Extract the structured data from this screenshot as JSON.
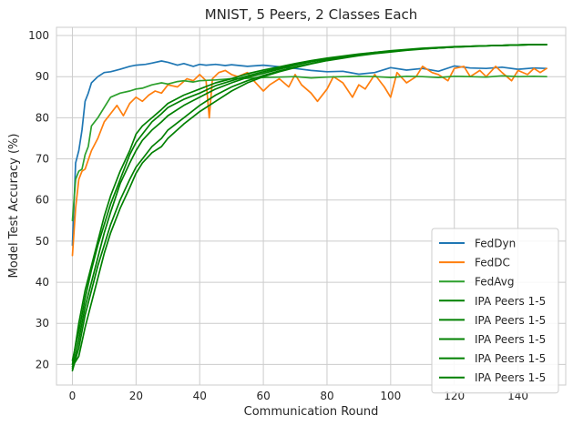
{
  "chart_data": {
    "type": "line",
    "title": "MNIST, 5 Peers, 2 Classes Each",
    "xlabel": "Communication Round",
    "ylabel": "Model Test Accuracy (%)",
    "xlim": [
      -5,
      155
    ],
    "ylim": [
      15,
      102
    ],
    "xticks": [
      0,
      20,
      40,
      60,
      80,
      100,
      120,
      140
    ],
    "yticks": [
      20,
      30,
      40,
      50,
      60,
      70,
      80,
      90,
      100
    ],
    "grid": true,
    "legend_position": "lower-right",
    "series": [
      {
        "name": "FedDyn",
        "color": "#1f77b4",
        "x": [
          0,
          1,
          2,
          3,
          4,
          5,
          6,
          8,
          10,
          12,
          15,
          18,
          20,
          23,
          25,
          28,
          30,
          33,
          35,
          38,
          40,
          42,
          45,
          48,
          50,
          55,
          60,
          65,
          70,
          75,
          80,
          85,
          90,
          95,
          100,
          105,
          110,
          115,
          120,
          125,
          130,
          135,
          140,
          145,
          149
        ],
        "y": [
          49,
          69,
          72,
          77,
          84,
          86,
          88.5,
          90,
          91,
          91.2,
          91.8,
          92.5,
          92.8,
          93,
          93.3,
          93.8,
          93.5,
          92.8,
          93.2,
          92.5,
          93,
          92.8,
          93,
          92.7,
          92.9,
          92.5,
          92.8,
          92.4,
          92,
          91.5,
          91.2,
          91.3,
          90.6,
          91,
          92.2,
          91.6,
          92,
          91.3,
          92.6,
          92.1,
          92,
          92.3,
          91.8,
          92.1,
          92
        ]
      },
      {
        "name": "FedDC",
        "color": "#ff7f0e",
        "x": [
          0,
          1,
          2,
          3,
          4,
          6,
          8,
          10,
          12,
          14,
          16,
          18,
          20,
          22,
          24,
          26,
          28,
          30,
          33,
          36,
          38,
          40,
          42,
          43,
          44,
          46,
          48,
          50,
          52,
          55,
          57,
          60,
          62,
          65,
          68,
          70,
          72,
          75,
          77,
          80,
          82,
          85,
          88,
          90,
          92,
          95,
          98,
          100,
          102,
          105,
          108,
          110,
          113,
          115,
          118,
          120,
          123,
          125,
          128,
          130,
          133,
          135,
          138,
          140,
          143,
          145,
          147,
          149
        ],
        "y": [
          46.5,
          58,
          65,
          67,
          67.5,
          72,
          75,
          79,
          81,
          83,
          80.5,
          83.5,
          85,
          84,
          85.5,
          86.5,
          86,
          88,
          87.5,
          89.5,
          89,
          90.5,
          89,
          80,
          89.5,
          91,
          91.5,
          90.5,
          90,
          91,
          89,
          86.5,
          88,
          89.5,
          87.5,
          90.5,
          88,
          86,
          84,
          87,
          90,
          88.5,
          85,
          88,
          87,
          90.5,
          87.5,
          85,
          91,
          88.5,
          90,
          92.5,
          91,
          90.5,
          89,
          92,
          92.5,
          90,
          91.5,
          90,
          92.5,
          91,
          89,
          91.5,
          90.5,
          92,
          91,
          92
        ]
      },
      {
        "name": "FedAvg",
        "color": "#2ca02c",
        "x": [
          0,
          1,
          2,
          3,
          4,
          5,
          6,
          8,
          10,
          12,
          15,
          18,
          20,
          22,
          25,
          28,
          30,
          33,
          35,
          38,
          40,
          45,
          50,
          55,
          60,
          65,
          70,
          75,
          80,
          85,
          90,
          95,
          100,
          105,
          110,
          115,
          120,
          125,
          130,
          135,
          140,
          145,
          149
        ],
        "y": [
          55,
          65,
          67,
          67.5,
          71,
          73,
          78,
          80,
          82.5,
          85,
          86,
          86.5,
          87,
          87.2,
          88,
          88.5,
          88.2,
          88.8,
          89,
          88.7,
          89,
          89.2,
          89.5,
          89.6,
          89.8,
          89.9,
          90,
          89.7,
          89.9,
          90,
          90.1,
          90,
          89.8,
          90.1,
          90,
          89.8,
          90.1,
          90,
          89.9,
          90.2,
          90,
          90.1,
          90
        ]
      },
      {
        "name": "IPA Peers 1-5",
        "color": "#008000",
        "x": [
          0,
          2,
          4,
          6,
          8,
          10,
          12,
          15,
          18,
          20,
          22,
          25,
          28,
          30,
          35,
          40,
          45,
          50,
          55,
          60,
          65,
          70,
          75,
          80,
          85,
          90,
          95,
          100,
          105,
          110,
          115,
          120,
          125,
          130,
          135,
          140,
          145,
          149
        ],
        "y": [
          19,
          26,
          34,
          40,
          46,
          52,
          57,
          64,
          69,
          72,
          74.5,
          77,
          79,
          80.5,
          83,
          85,
          87,
          88.5,
          89.8,
          90.8,
          91.8,
          92.8,
          93.6,
          94.3,
          94.9,
          95.4,
          95.9,
          96.2,
          96.5,
          96.8,
          97,
          97.2,
          97.4,
          97.5,
          97.6,
          97.7,
          97.8,
          97.8
        ]
      },
      {
        "name": "IPA Peers 1-5",
        "color": "#008000",
        "x": [
          0,
          2,
          4,
          6,
          8,
          10,
          12,
          15,
          18,
          20,
          22,
          25,
          28,
          30,
          35,
          40,
          45,
          50,
          55,
          60,
          65,
          70,
          75,
          80,
          85,
          90,
          95,
          100,
          105,
          110,
          115,
          120,
          125,
          130,
          135,
          140,
          145,
          149
        ],
        "y": [
          20,
          30,
          38,
          44,
          50,
          56,
          61,
          67,
          72,
          76,
          78,
          80,
          82,
          83.5,
          85.5,
          87,
          88.5,
          89.5,
          90.7,
          91.6,
          92.4,
          93.2,
          93.9,
          94.5,
          95,
          95.5,
          95.9,
          96.3,
          96.6,
          96.9,
          97.1,
          97.3,
          97.4,
          97.5,
          97.6,
          97.7,
          97.8,
          97.8
        ]
      },
      {
        "name": "IPA Peers 1-5",
        "color": "#008000",
        "x": [
          0,
          2,
          4,
          6,
          8,
          10,
          12,
          15,
          18,
          20,
          22,
          25,
          28,
          30,
          35,
          40,
          45,
          50,
          55,
          60,
          65,
          70,
          75,
          80,
          85,
          90,
          95,
          100,
          105,
          110,
          115,
          120,
          125,
          130,
          135,
          140,
          145,
          149
        ],
        "y": [
          18.5,
          24,
          32,
          38,
          44,
          49,
          54,
          60,
          65,
          68,
          70,
          73,
          75,
          77,
          80,
          83,
          85.5,
          87.5,
          89,
          90.3,
          91.4,
          92.4,
          93.2,
          94,
          94.7,
          95.3,
          95.8,
          96.1,
          96.5,
          96.8,
          97,
          97.2,
          97.4,
          97.5,
          97.6,
          97.7,
          97.8,
          97.8
        ]
      },
      {
        "name": "IPA Peers 1-5",
        "color": "#008000",
        "x": [
          0,
          2,
          4,
          6,
          8,
          10,
          12,
          15,
          18,
          20,
          22,
          25,
          28,
          30,
          35,
          40,
          45,
          50,
          55,
          60,
          65,
          70,
          75,
          80,
          85,
          90,
          95,
          100,
          105,
          110,
          115,
          120,
          125,
          130,
          135,
          140,
          145,
          149
        ],
        "y": [
          21,
          28,
          36,
          43,
          49,
          54,
          59,
          65,
          71,
          74,
          76,
          79,
          81,
          82.5,
          84.5,
          86,
          87.8,
          89,
          90.2,
          91.2,
          92.1,
          93,
          93.7,
          94.4,
          94.9,
          95.4,
          95.8,
          96.2,
          96.5,
          96.8,
          97,
          97.2,
          97.4,
          97.5,
          97.6,
          97.7,
          97.8,
          97.8
        ]
      },
      {
        "name": "IPA Peers 1-5",
        "color": "#008000",
        "x": [
          0,
          2,
          4,
          6,
          8,
          10,
          12,
          15,
          18,
          20,
          22,
          25,
          28,
          30,
          35,
          40,
          45,
          50,
          55,
          60,
          65,
          70,
          75,
          80,
          85,
          90,
          95,
          100,
          105,
          110,
          115,
          120,
          125,
          130,
          135,
          140,
          145,
          149
        ],
        "y": [
          19.5,
          22,
          29,
          35,
          41,
          47,
          52,
          58,
          63,
          66.5,
          69,
          71.5,
          73,
          75,
          78.5,
          81.5,
          84,
          86.5,
          88.5,
          90,
          91.2,
          92.2,
          93.1,
          93.9,
          94.5,
          95.1,
          95.6,
          96,
          96.4,
          96.7,
          97,
          97.2,
          97.3,
          97.5,
          97.6,
          97.7,
          97.8,
          97.8
        ]
      }
    ]
  }
}
